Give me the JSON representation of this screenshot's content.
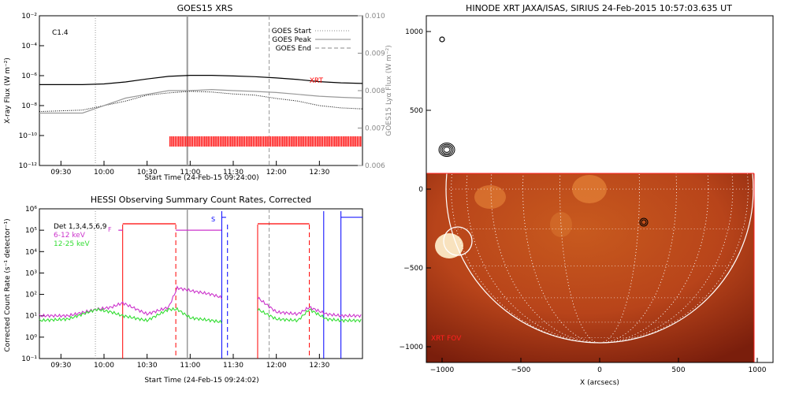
{
  "chart_data": [
    {
      "type": "line",
      "title": "GOES15 XRS",
      "xlabel": "Start Time (24-Feb-15 09:24:00)",
      "ylabel": "X-ray Flux (W m⁻²)",
      "y2label": "GOES15 Lyα Flux (W m⁻²)",
      "xlim": [
        "09:15",
        "13:00"
      ],
      "x_ticks": [
        "09:30",
        "10:00",
        "10:30",
        "11:00",
        "11:30",
        "12:00",
        "12:30"
      ],
      "y_scale": "log",
      "ylim": [
        1e-12,
        0.01
      ],
      "y_ticks": [
        "10⁻¹²",
        "10⁻¹⁰",
        "10⁻⁸",
        "10⁻⁶",
        "10⁻⁴",
        "10⁻²"
      ],
      "y2lim": [
        0.006,
        0.01
      ],
      "y2_ticks": [
        "0.006",
        "0.007",
        "0.008",
        "0.009",
        "0.010"
      ],
      "annotation_class": "C1.4",
      "legend": [
        "GOES Start",
        "GOES Peak",
        "GOES End"
      ],
      "legend_position": "top-right",
      "xrt_label": "XRT",
      "event_times": {
        "start": "09:54",
        "peak": "10:58",
        "end": "11:55"
      },
      "xrt_coverage": [
        "10:46",
        "13:00"
      ],
      "series": [
        {
          "name": "long",
          "x": [
            "09:15",
            "09:45",
            "10:00",
            "10:15",
            "10:30",
            "10:45",
            "11:00",
            "11:15",
            "11:30",
            "11:45",
            "12:00",
            "12:15",
            "12:30",
            "12:45",
            "13:00"
          ],
          "values": [
            2.5e-07,
            2.5e-07,
            2.8e-07,
            3.8e-07,
            6e-07,
            9e-07,
            1.05e-06,
            1.05e-06,
            9.5e-07,
            8.5e-07,
            7e-07,
            5.5e-07,
            4e-07,
            3.3e-07,
            3e-07
          ]
        },
        {
          "name": "short",
          "x": [
            "09:15",
            "09:45",
            "10:00",
            "10:15",
            "10:30",
            "10:45",
            "11:00",
            "11:15",
            "11:30",
            "11:45",
            "12:00",
            "12:15",
            "12:30",
            "12:45",
            "13:00"
          ],
          "values": [
            4e-09,
            5e-09,
            1e-08,
            2e-08,
            5e-08,
            7e-08,
            9e-08,
            8e-08,
            6e-08,
            5e-08,
            3e-08,
            2e-08,
            1e-08,
            7e-09,
            6e-09
          ]
        },
        {
          "name": "lya",
          "x": [
            "09:15",
            "09:45",
            "10:00",
            "10:15",
            "10:30",
            "10:45",
            "11:00",
            "11:15",
            "11:30",
            "11:45",
            "12:00",
            "12:15",
            "12:30",
            "12:45",
            "13:00"
          ],
          "values": [
            0.0074,
            0.0074,
            0.0076,
            0.0078,
            0.0079,
            0.008,
            0.008,
            0.00803,
            0.008,
            0.00798,
            0.00795,
            0.0079,
            0.00785,
            0.00782,
            0.0078
          ]
        }
      ]
    },
    {
      "type": "line",
      "title": "HESSI Observing Summary Count Rates, Corrected",
      "xlabel": "Start Time (24-Feb-15 09:24:02)",
      "ylabel": "Corrected Count Rate (s⁻¹ detector⁻¹)",
      "xlim": [
        "09:15",
        "13:00"
      ],
      "x_ticks": [
        "09:30",
        "10:00",
        "10:30",
        "11:00",
        "11:30",
        "12:00",
        "12:30"
      ],
      "y_scale": "log",
      "ylim": [
        0.1,
        1000000.0
      ],
      "y_ticks": [
        "10⁻¹",
        "10⁰",
        "10¹",
        "10²",
        "10³",
        "10⁴",
        "10⁵",
        "10⁶"
      ],
      "legend": [
        "Det 1,3,4,5,6,9",
        "6-12 keV",
        "12-25 keV"
      ],
      "legend_position": "top-left",
      "flag_labels": {
        "F": "F",
        "S": "S"
      },
      "series": [
        {
          "name": "6-12 keV",
          "x": [
            "09:15",
            "09:35",
            "09:55",
            "10:05",
            "10:13",
            "10:30",
            "10:45",
            "10:51",
            "11:00",
            "11:15",
            "11:22",
            "11:47",
            "12:00",
            "12:15",
            "12:23",
            "12:35",
            "12:45",
            "13:00"
          ],
          "values": [
            10,
            10,
            20,
            25,
            40,
            12,
            25,
            200,
            150,
            100,
            70,
            70,
            15,
            12,
            25,
            12,
            10,
            10
          ]
        },
        {
          "name": "12-25 keV",
          "x": [
            "09:15",
            "09:35",
            "09:55",
            "10:05",
            "10:13",
            "10:30",
            "10:45",
            "10:51",
            "11:00",
            "11:15",
            "11:22",
            "11:47",
            "12:00",
            "12:15",
            "12:23",
            "12:35",
            "12:45",
            "13:00"
          ],
          "values": [
            6,
            7,
            20,
            15,
            10,
            6,
            20,
            20,
            8,
            6,
            5,
            20,
            7,
            6,
            20,
            7,
            6,
            6
          ]
        }
      ]
    },
    {
      "type": "scatter",
      "title": "HINODE XRT JAXA/ISAS, SIRIUS 24-Feb-2015 10:57:03.635 UT",
      "xlabel": "X (arcsecs)",
      "ylabel": "",
      "xlim": [
        -1100,
        1100
      ],
      "ylim": [
        -1100,
        1100
      ],
      "x_ticks": [
        "−1000",
        "−500",
        "0",
        "500",
        "1000"
      ],
      "y_ticks": [
        "1000",
        "500",
        "0",
        "−500",
        "−1000"
      ],
      "fov_label": "XRT FOV",
      "fov_box": {
        "x": [
          -1100,
          980
        ],
        "y": [
          -1100,
          100
        ]
      },
      "solar_radius": 975,
      "circles": [
        {
          "x": -1000,
          "y": 950
        },
        {
          "x": -970,
          "y": 250
        },
        {
          "x": 280,
          "y": -210
        },
        {
          "x": -900,
          "y": -330
        }
      ]
    }
  ],
  "colors": {
    "xrt_red": "#ff0000",
    "hessi_red": "#ff0000",
    "hessi_blue": "#0000ff",
    "hessi_magenta": "#cc33cc",
    "hessi_green": "#33dd33",
    "goes_gray": "#a0a0a0"
  }
}
